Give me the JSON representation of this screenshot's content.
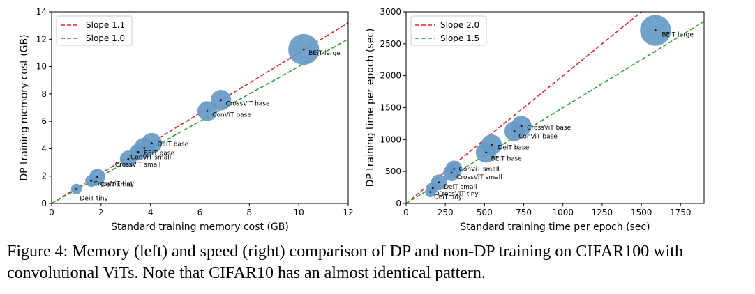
{
  "caption": "Figure 4: Memory (left) and speed (right) comparison of DP and non-DP training on CIFAR100 with convolutional ViTs. Note that CIFAR10 has an almost identical pattern.",
  "chart_data": [
    {
      "type": "scatter",
      "xlabel": "Standard training memory cost (GB)",
      "ylabel": "DP training memory cost (GB)",
      "xlim": [
        0,
        12
      ],
      "ylim": [
        0,
        14
      ],
      "xticks": [
        0,
        2,
        4,
        6,
        8,
        10,
        12
      ],
      "yticks": [
        0,
        2,
        4,
        6,
        8,
        10,
        12,
        14
      ],
      "legend_position": "top-left",
      "bubble_color": "#6699c4",
      "lines": [
        {
          "name": "Slope 1.1",
          "slope": 1.1,
          "color": "#d62728"
        },
        {
          "name": "Slope 1.0",
          "slope": 1.0,
          "color": "#2ca02c"
        }
      ],
      "points": [
        {
          "name": "DeiT tiny",
          "x": 1.0,
          "y": 1.05,
          "size": 0.2
        },
        {
          "name": "CrossViT tiny",
          "x": 1.6,
          "y": 1.65,
          "size": 0.25
        },
        {
          "name": "DeiT small",
          "x": 1.85,
          "y": 1.95,
          "size": 0.45
        },
        {
          "name": "CrossViT small",
          "x": 3.1,
          "y": 3.25,
          "size": 0.5
        },
        {
          "name": "ConViT small",
          "x": 3.5,
          "y": 3.75,
          "size": 0.5
        },
        {
          "name": "BEiT base",
          "x": 3.75,
          "y": 4.05,
          "size": 0.75
        },
        {
          "name": "DeiT base",
          "x": 4.05,
          "y": 4.4,
          "size": 0.75
        },
        {
          "name": "ConViT base",
          "x": 6.3,
          "y": 6.75,
          "size": 0.7
        },
        {
          "name": "CrossViT base",
          "x": 6.85,
          "y": 7.55,
          "size": 0.75
        },
        {
          "name": "BEiT large",
          "x": 10.2,
          "y": 11.25,
          "size": 1.7
        }
      ]
    },
    {
      "type": "scatter",
      "xlabel": "Standard training time per epoch (sec)",
      "ylabel": "DP training time per epoch (sec)",
      "xlim": [
        0,
        1900
      ],
      "ylim": [
        0,
        3000
      ],
      "xticks": [
        0,
        250,
        500,
        750,
        1000,
        1250,
        1500,
        1750
      ],
      "yticks": [
        0,
        500,
        1000,
        1500,
        2000,
        2500,
        3000
      ],
      "legend_position": "top-left",
      "bubble_color": "#6699c4",
      "lines": [
        {
          "name": "Slope 2.0",
          "slope": 2.0,
          "color": "#d62728"
        },
        {
          "name": "Slope 1.5",
          "slope": 1.5,
          "color": "#2ca02c"
        }
      ],
      "points": [
        {
          "name": "DeiT tiny",
          "x": 155,
          "y": 180,
          "size": 0.2
        },
        {
          "name": "CrossViT tiny",
          "x": 170,
          "y": 240,
          "size": 0.25
        },
        {
          "name": "DeiT small",
          "x": 210,
          "y": 330,
          "size": 0.45
        },
        {
          "name": "CrossViT small",
          "x": 290,
          "y": 480,
          "size": 0.5
        },
        {
          "name": "ConViT small",
          "x": 305,
          "y": 540,
          "size": 0.5
        },
        {
          "name": "BEiT base",
          "x": 510,
          "y": 800,
          "size": 0.75
        },
        {
          "name": "DeiT base",
          "x": 545,
          "y": 920,
          "size": 0.75
        },
        {
          "name": "ConViT base",
          "x": 690,
          "y": 1130,
          "size": 0.7
        },
        {
          "name": "CrossViT base",
          "x": 735,
          "y": 1210,
          "size": 0.75
        },
        {
          "name": "BEiT large",
          "x": 1590,
          "y": 2710,
          "size": 1.7
        }
      ]
    }
  ]
}
